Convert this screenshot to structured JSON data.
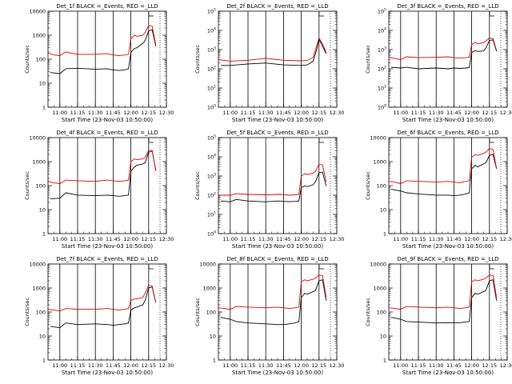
{
  "chart_data": [
    {
      "type": "line",
      "title": "Det_1f BLACK =_Events, RED =_LLD",
      "xlabel": "Start Time (23-Nov-03 10:50:00)",
      "ylabel": "Counts/sec",
      "scale": "log",
      "ylim": [
        1,
        10000
      ],
      "yticks": [
        "1",
        "10",
        "100",
        "1000",
        "10000"
      ],
      "xlim": [
        "10:50",
        "12:30"
      ],
      "xticks": [
        "11:00",
        "11:15",
        "11:30",
        "11:45",
        "12:00",
        "12:15",
        "12:30"
      ],
      "series": [
        {
          "color": "#000000",
          "x": [
            "10:52",
            "11:00",
            "11:05",
            "11:15",
            "11:30",
            "11:40",
            "11:45",
            "11:50",
            "11:55",
            "11:58",
            "12:00",
            "12:03",
            "12:05",
            "12:10",
            "12:12",
            "12:15",
            "12:18",
            "12:21"
          ],
          "y": [
            28,
            25,
            40,
            42,
            38,
            40,
            36,
            34,
            36,
            40,
            190,
            280,
            300,
            450,
            600,
            1500,
            1700,
            350
          ]
        },
        {
          "color": "#e00000",
          "x": [
            "10:50",
            "10:55",
            "11:00",
            "11:05",
            "11:15",
            "11:30",
            "11:40",
            "11:45",
            "11:50",
            "11:55",
            "11:58",
            "12:00",
            "12:03",
            "12:05",
            "12:10",
            "12:12",
            "12:15",
            "12:18",
            "12:21"
          ],
          "y": [
            180,
            150,
            140,
            200,
            160,
            160,
            170,
            150,
            140,
            150,
            160,
            700,
            1000,
            900,
            1000,
            1300,
            2500,
            2400,
            400
          ]
        }
      ]
    },
    {
      "type": "line",
      "title": "Det_2f BLACK =_Events, RED =_LLD",
      "xlabel": "Start Time (23-Nov-03 10:50:00)",
      "ylabel": "Counts/sec",
      "scale": "log",
      "ylim": [
        1,
        100000
      ],
      "yticks": [
        "10^0",
        "10^1",
        "10^2",
        "10^3",
        "10^4",
        "10^5"
      ],
      "xlim": [
        "10:50",
        "12:30"
      ],
      "xticks": [
        "11:00",
        "11:15",
        "11:30",
        "11:45",
        "12:00",
        "12:15",
        "12:30"
      ],
      "series": [
        {
          "color": "#000000",
          "x": [
            "10:52",
            "11:00",
            "11:15",
            "11:30",
            "11:45",
            "12:00",
            "12:05",
            "12:10",
            "12:13",
            "12:15",
            "12:18",
            "12:21"
          ],
          "y": [
            150,
            150,
            180,
            200,
            160,
            150,
            160,
            250,
            1000,
            3500,
            1500,
            600
          ]
        },
        {
          "color": "#e00000",
          "x": [
            "10:50",
            "11:00",
            "11:15",
            "11:30",
            "11:45",
            "12:00",
            "12:05",
            "12:10",
            "12:13",
            "12:15",
            "12:18",
            "12:21"
          ],
          "y": [
            300,
            250,
            280,
            350,
            280,
            260,
            270,
            400,
            1500,
            4000,
            2000,
            700
          ]
        }
      ]
    },
    {
      "type": "line",
      "title": "Det_3f BLACK =_Events, RED =_LLD",
      "xlabel": "Start Time (23-Nov-03 10:50:00)",
      "ylabel": "Counts/sec",
      "scale": "log",
      "ylim": [
        1,
        100000
      ],
      "yticks": [
        "10^0",
        "10^1",
        "10^2",
        "10^3",
        "10^4",
        "10^5"
      ],
      "xlim": [
        "10:50",
        "12:30"
      ],
      "xticks": [
        "11:00",
        "11:15",
        "11:30",
        "11:45",
        "12:00",
        "12:15",
        "12:30"
      ],
      "series": [
        {
          "color": "#000000",
          "x": [
            "10:52",
            "11:00",
            "11:05",
            "11:15",
            "11:30",
            "11:40",
            "11:45",
            "11:50",
            "11:55",
            "11:58",
            "12:00",
            "12:03",
            "12:05",
            "12:10",
            "12:12",
            "12:15",
            "12:18",
            "12:21"
          ],
          "y": [
            120,
            110,
            120,
            100,
            110,
            100,
            110,
            105,
            110,
            115,
            700,
            900,
            800,
            850,
            1200,
            3000,
            3200,
            800
          ]
        },
        {
          "color": "#e00000",
          "x": [
            "10:50",
            "10:55",
            "11:00",
            "11:05",
            "11:15",
            "11:30",
            "11:40",
            "11:45",
            "11:50",
            "11:55",
            "11:58",
            "12:00",
            "12:03",
            "12:05",
            "12:10",
            "12:12",
            "12:15",
            "12:18",
            "12:21"
          ],
          "y": [
            400,
            350,
            300,
            420,
            380,
            400,
            420,
            380,
            360,
            380,
            400,
            1800,
            2400,
            2000,
            2300,
            2800,
            4000,
            3800,
            900
          ]
        }
      ]
    },
    {
      "type": "line",
      "title": "Det_4f BLACK =_Events, RED =_LLD",
      "xlabel": "Start Time (23-Nov-03 10:50:00)",
      "ylabel": "Counts/sec",
      "scale": "log",
      "ylim": [
        1,
        10000
      ],
      "yticks": [
        "1",
        "10",
        "100",
        "1000",
        "10000"
      ],
      "xlim": [
        "10:50",
        "12:30"
      ],
      "xticks": [
        "11:00",
        "11:15",
        "11:30",
        "11:45",
        "12:00",
        "12:15",
        "12:30"
      ],
      "series": [
        {
          "color": "#000000",
          "x": [
            "10:52",
            "11:00",
            "11:05",
            "11:15",
            "11:30",
            "11:40",
            "11:45",
            "11:50",
            "11:55",
            "11:58",
            "12:00",
            "12:03",
            "12:05",
            "12:10",
            "12:12",
            "12:15",
            "12:18",
            "12:21"
          ],
          "y": [
            28,
            30,
            50,
            40,
            38,
            40,
            38,
            36,
            38,
            40,
            400,
            600,
            700,
            800,
            900,
            2500,
            2700,
            450
          ]
        },
        {
          "color": "#e00000",
          "x": [
            "10:50",
            "10:55",
            "11:00",
            "11:05",
            "11:15",
            "11:30",
            "11:40",
            "11:45",
            "11:50",
            "11:55",
            "11:58",
            "12:00",
            "12:03",
            "12:05",
            "12:10",
            "12:12",
            "12:15",
            "12:18",
            "12:21"
          ],
          "y": [
            150,
            130,
            120,
            170,
            160,
            150,
            170,
            160,
            150,
            160,
            170,
            1000,
            1300,
            1200,
            1300,
            1500,
            3000,
            2900,
            400
          ]
        }
      ]
    },
    {
      "type": "line",
      "title": "Det_5f BLACK =_Events, RED =_LLD",
      "xlabel": "Start Time (23-Nov-03 10:50:00)",
      "ylabel": "Counts/sec",
      "scale": "log",
      "ylim": [
        1,
        100000
      ],
      "yticks": [
        "10^0",
        "10^1",
        "10^2",
        "10^3",
        "10^4",
        "10^5"
      ],
      "xlim": [
        "10:50",
        "12:30"
      ],
      "xticks": [
        "11:00",
        "11:15",
        "11:30",
        "11:45",
        "12:00",
        "12:15",
        "12:30"
      ],
      "series": [
        {
          "color": "#000000",
          "x": [
            "10:52",
            "11:00",
            "11:05",
            "11:15",
            "11:30",
            "11:40",
            "11:45",
            "11:50",
            "11:55",
            "11:58",
            "12:00",
            "12:03",
            "12:05",
            "12:10",
            "12:12",
            "12:15",
            "12:18",
            "12:21"
          ],
          "y": [
            50,
            45,
            60,
            50,
            45,
            50,
            48,
            46,
            48,
            50,
            250,
            300,
            280,
            350,
            500,
            1500,
            1600,
            300
          ]
        },
        {
          "color": "#e00000",
          "x": [
            "10:50",
            "10:55",
            "11:00",
            "11:05",
            "11:15",
            "11:30",
            "11:40",
            "11:45",
            "11:50",
            "11:55",
            "11:58",
            "12:00",
            "12:03",
            "12:05",
            "12:10",
            "12:12",
            "12:15",
            "12:18",
            "12:21"
          ],
          "y": [
            100,
            100,
            100,
            120,
            110,
            105,
            110,
            108,
            100,
            105,
            110,
            1000,
            1300,
            1200,
            1400,
            1800,
            4000,
            3800,
            500
          ]
        }
      ]
    },
    {
      "type": "line",
      "title": "Det_6f BLACK =_Events, RED =_LLD",
      "xlabel": "Start Time (23-Nov-03 10:50:00)",
      "ylabel": "Counts/sec",
      "scale": "log",
      "ylim": [
        1,
        10000
      ],
      "yticks": [
        "1",
        "10",
        "100",
        "1000",
        "10000"
      ],
      "xlim": [
        "10:50",
        "12:30"
      ],
      "xticks": [
        "11:00",
        "11:15",
        "11:30",
        "11:45",
        "12:00",
        "12:15",
        "12:30"
      ],
      "series": [
        {
          "color": "#000000",
          "x": [
            "10:52",
            "11:00",
            "11:05",
            "11:15",
            "11:30",
            "11:40",
            "11:45",
            "11:50",
            "11:55",
            "11:58",
            "12:00",
            "12:03",
            "12:05",
            "12:10",
            "12:12",
            "12:15",
            "12:18",
            "12:21"
          ],
          "y": [
            70,
            60,
            50,
            45,
            40,
            40,
            38,
            40,
            45,
            50,
            500,
            700,
            600,
            800,
            900,
            1800,
            2000,
            500
          ]
        },
        {
          "color": "#e00000",
          "x": [
            "10:50",
            "10:55",
            "11:00",
            "11:05",
            "11:15",
            "11:30",
            "11:40",
            "11:45",
            "11:50",
            "11:55",
            "11:58",
            "12:00",
            "12:03",
            "12:05",
            "12:10",
            "12:12",
            "12:15",
            "12:18",
            "12:21"
          ],
          "y": [
            150,
            140,
            120,
            160,
            150,
            140,
            150,
            140,
            130,
            150,
            160,
            1500,
            2000,
            1800,
            2200,
            2500,
            3500,
            3300,
            500
          ]
        }
      ]
    },
    {
      "type": "line",
      "title": "Det_7f BLACK =_Events, RED =_LLD",
      "xlabel": "Start Time (23-Nov-03 10:50:00)",
      "ylabel": "Counts/sec",
      "scale": "log",
      "ylim": [
        1,
        10000
      ],
      "yticks": [
        "1",
        "10",
        "100",
        "1000",
        "10000"
      ],
      "xlim": [
        "10:50",
        "12:30"
      ],
      "xticks": [
        "11:00",
        "11:15",
        "11:30",
        "11:45",
        "12:00",
        "12:15",
        "12:30"
      ],
      "series": [
        {
          "color": "#000000",
          "x": [
            "10:52",
            "11:00",
            "11:05",
            "11:15",
            "11:30",
            "11:40",
            "11:45",
            "11:50",
            "11:55",
            "11:58",
            "12:00",
            "12:03",
            "12:05",
            "12:10",
            "12:12",
            "12:15",
            "12:18",
            "12:21"
          ],
          "y": [
            25,
            22,
            35,
            30,
            32,
            30,
            28,
            30,
            32,
            35,
            120,
            150,
            160,
            200,
            300,
            1000,
            1100,
            250
          ]
        },
        {
          "color": "#e00000",
          "x": [
            "10:50",
            "10:55",
            "11:00",
            "11:05",
            "11:15",
            "11:30",
            "11:40",
            "11:45",
            "11:50",
            "11:55",
            "11:58",
            "12:00",
            "12:03",
            "12:05",
            "12:10",
            "12:12",
            "12:15",
            "12:18",
            "12:21"
          ],
          "y": [
            130,
            120,
            110,
            140,
            130,
            130,
            140,
            130,
            120,
            130,
            140,
            300,
            350,
            350,
            400,
            600,
            1300,
            1200,
            250
          ]
        }
      ]
    },
    {
      "type": "line",
      "title": "Det_8f BLACK =_Events, RED =_LLD",
      "xlabel": "Start Time (23-Nov-03 10:50:00)",
      "ylabel": "Counts/sec",
      "scale": "log",
      "ylim": [
        1,
        10000
      ],
      "yticks": [
        "1",
        "10",
        "100",
        "1000",
        "10000"
      ],
      "xlim": [
        "10:50",
        "12:30"
      ],
      "xticks": [
        "11:00",
        "11:15",
        "11:30",
        "11:45",
        "12:00",
        "12:15",
        "12:30"
      ],
      "series": [
        {
          "color": "#000000",
          "x": [
            "10:52",
            "11:00",
            "11:05",
            "11:15",
            "11:30",
            "11:40",
            "11:45",
            "11:50",
            "11:55",
            "11:58",
            "12:00",
            "12:03",
            "12:05",
            "12:10",
            "12:12",
            "12:15",
            "12:18",
            "12:21"
          ],
          "y": [
            60,
            50,
            40,
            35,
            32,
            30,
            30,
            32,
            35,
            40,
            400,
            600,
            550,
            700,
            800,
            2000,
            2200,
            300
          ]
        },
        {
          "color": "#e00000",
          "x": [
            "10:50",
            "10:55",
            "11:00",
            "11:05",
            "11:15",
            "11:30",
            "11:40",
            "11:45",
            "11:50",
            "11:55",
            "11:58",
            "12:00",
            "12:03",
            "12:05",
            "12:10",
            "12:12",
            "12:15",
            "12:18",
            "12:21"
          ],
          "y": [
            150,
            140,
            130,
            170,
            160,
            150,
            160,
            150,
            140,
            150,
            160,
            1800,
            2200,
            2000,
            2300,
            2600,
            3500,
            3300,
            400
          ]
        }
      ]
    },
    {
      "type": "line",
      "title": "Det_9f BLACK =_Events, RED =_LLD",
      "xlabel": "Start Time (23-Nov-03 10:50:00)",
      "ylabel": "Counts/sec",
      "scale": "log",
      "ylim": [
        1,
        10000
      ],
      "yticks": [
        "1",
        "10",
        "100",
        "1000",
        "10000"
      ],
      "xlim": [
        "10:50",
        "12:30"
      ],
      "xticks": [
        "11:00",
        "11:15",
        "11:30",
        "11:45",
        "12:00",
        "12:15",
        "12:30"
      ],
      "series": [
        {
          "color": "#000000",
          "x": [
            "10:52",
            "11:00",
            "11:05",
            "11:15",
            "11:30",
            "11:40",
            "11:45",
            "11:50",
            "11:55",
            "11:58",
            "12:00",
            "12:03",
            "12:05",
            "12:10",
            "12:12",
            "12:15",
            "12:18",
            "12:21"
          ],
          "y": [
            60,
            50,
            40,
            38,
            35,
            36,
            35,
            36,
            38,
            40,
            400,
            600,
            550,
            700,
            800,
            2000,
            2200,
            300
          ]
        },
        {
          "color": "#e00000",
          "x": [
            "10:50",
            "10:55",
            "11:00",
            "11:05",
            "11:15",
            "11:30",
            "11:40",
            "11:45",
            "11:50",
            "11:55",
            "11:58",
            "12:00",
            "12:03",
            "12:05",
            "12:10",
            "12:12",
            "12:15",
            "12:18",
            "12:21"
          ],
          "y": [
            150,
            140,
            130,
            170,
            160,
            150,
            160,
            150,
            140,
            150,
            160,
            1800,
            2200,
            2000,
            2300,
            2600,
            3500,
            3300,
            400
          ]
        }
      ]
    }
  ]
}
